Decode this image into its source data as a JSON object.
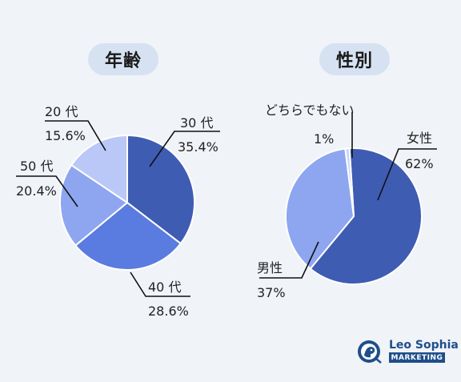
{
  "chart_data": [
    {
      "type": "pie",
      "title": "年齢",
      "slices": [
        {
          "label": "30 代",
          "value": 35.4,
          "value_text": "35.4%",
          "color": "#3f5cb3"
        },
        {
          "label": "40 代",
          "value": 28.6,
          "value_text": "28.6%",
          "color": "#5a7be0"
        },
        {
          "label": "50 代",
          "value": 20.4,
          "value_text": "20.4%",
          "color": "#8ea6f0"
        },
        {
          "label": "20 代",
          "value": 15.6,
          "value_text": "15.6%",
          "color": "#b9c8f6"
        }
      ]
    },
    {
      "type": "pie",
      "title": "性別",
      "slices": [
        {
          "label": "女性",
          "value": 62,
          "value_text": "62%",
          "color": "#3f5cb3"
        },
        {
          "label": "男性",
          "value": 37,
          "value_text": "37%",
          "color": "#8ea6f0"
        },
        {
          "label": "どちらでもない",
          "value": 1,
          "value_text": "1%",
          "color": "#c9d5f7"
        }
      ]
    }
  ],
  "brand": {
    "name": "Leo Sophia",
    "tag": "MARKETING",
    "color": "#1f4f8a"
  }
}
